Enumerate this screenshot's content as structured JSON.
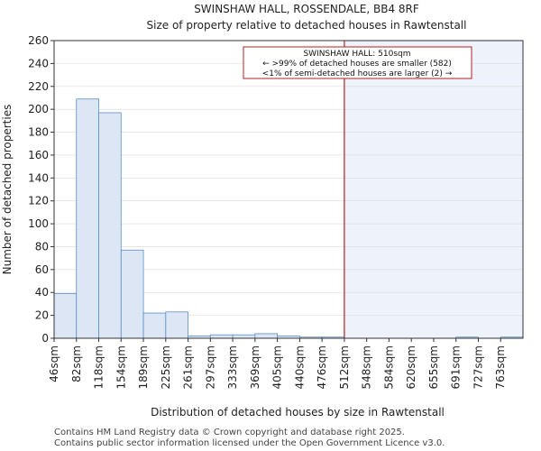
{
  "chart_data": {
    "type": "bar",
    "title": "SWINSHAW HALL, ROSSENDALE, BB4 8RF",
    "subtitle": "Size of property relative to detached houses in Rawtenstall",
    "xlabel": "Distribution of detached houses by size in Rawtenstall",
    "ylabel": "Number of detached properties",
    "ylim": [
      0,
      260
    ],
    "yticks": [
      0,
      20,
      40,
      60,
      80,
      100,
      120,
      140,
      160,
      180,
      200,
      220,
      240,
      260
    ],
    "categories": [
      "46sqm",
      "82sqm",
      "118sqm",
      "154sqm",
      "189sqm",
      "225sqm",
      "261sqm",
      "297sqm",
      "333sqm",
      "369sqm",
      "405sqm",
      "440sqm",
      "476sqm",
      "512sqm",
      "548sqm",
      "584sqm",
      "620sqm",
      "655sqm",
      "691sqm",
      "727sqm",
      "763sqm"
    ],
    "values": [
      39,
      209,
      197,
      77,
      22,
      23,
      2,
      3,
      3,
      4,
      2,
      1,
      1,
      0,
      0,
      0,
      0,
      0,
      1,
      0,
      1
    ],
    "marker_index": 13,
    "annotation": {
      "line1": "SWINSHAW HALL: 510sqm",
      "line2": "← >99% of detached houses are smaller (582)",
      "line3": "<1% of semi-detached houses are larger (2) →"
    },
    "colors": {
      "bar_fill": "#dce6f4",
      "bar_stroke": "#5b8ec8",
      "marker": "#b22222",
      "highlight": "#eef2fb",
      "grid": "#d9d9d9"
    }
  },
  "footer": {
    "line1": "Contains HM Land Registry data © Crown copyright and database right 2025.",
    "line2": "Contains public sector information licensed under the Open Government Licence v3.0."
  }
}
